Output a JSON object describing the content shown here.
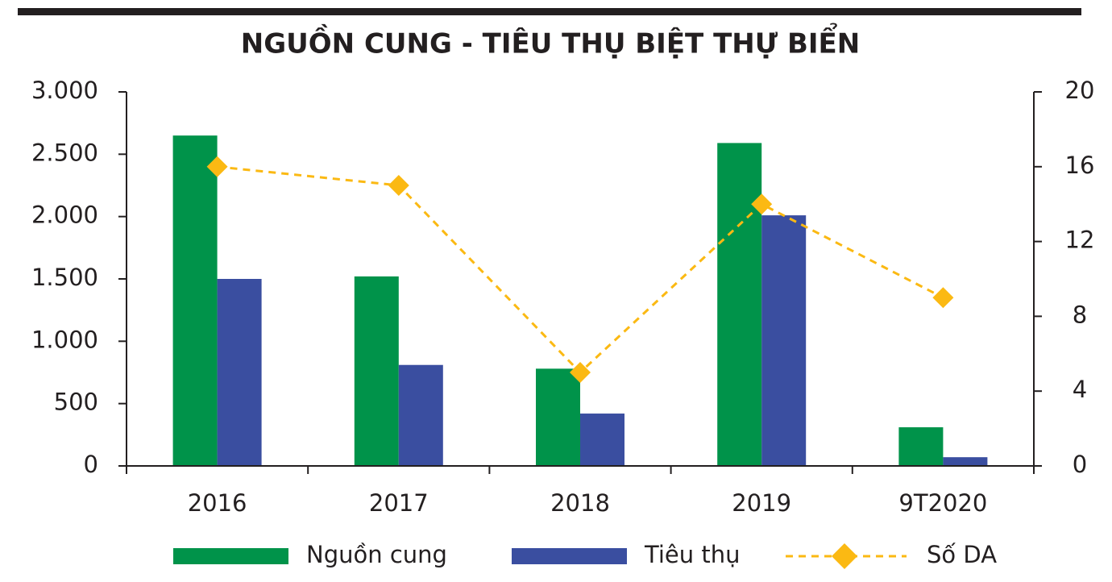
{
  "chart_data": {
    "type": "bar-line",
    "title": "NGUỒN CUNG - TIÊU THỤ BIỆT THỰ BIỂN",
    "categories": [
      "2016",
      "2017",
      "2018",
      "2019",
      "9T2020"
    ],
    "series": [
      {
        "name": "Nguồn cung",
        "color": "#00934a",
        "type": "bar",
        "values": [
          2650,
          1520,
          780,
          2590,
          310
        ]
      },
      {
        "name": "Tiêu thụ",
        "color": "#3a4ea0",
        "type": "bar",
        "values": [
          1500,
          810,
          420,
          2010,
          70
        ]
      },
      {
        "name": "Số DA",
        "color": "#fbb913",
        "type": "line",
        "axis": "y2",
        "marker": "diamond",
        "dashed": true,
        "values": [
          16,
          15,
          5,
          14,
          9
        ]
      }
    ],
    "ylim": [
      0,
      3000
    ],
    "yticks": [
      0,
      500,
      {
        "value": 1000,
        "label": "1.000"
      },
      {
        "value": 1500,
        "label": "1.500"
      },
      {
        "value": 2000,
        "label": "2.000"
      },
      {
        "value": 2500,
        "label": "2.500"
      },
      {
        "value": 3000,
        "label": "3.000"
      }
    ],
    "y2lim": [
      0,
      20
    ],
    "y2ticks": [
      0,
      4,
      8,
      12,
      16,
      20
    ],
    "grid": false,
    "legend": "bottom"
  }
}
